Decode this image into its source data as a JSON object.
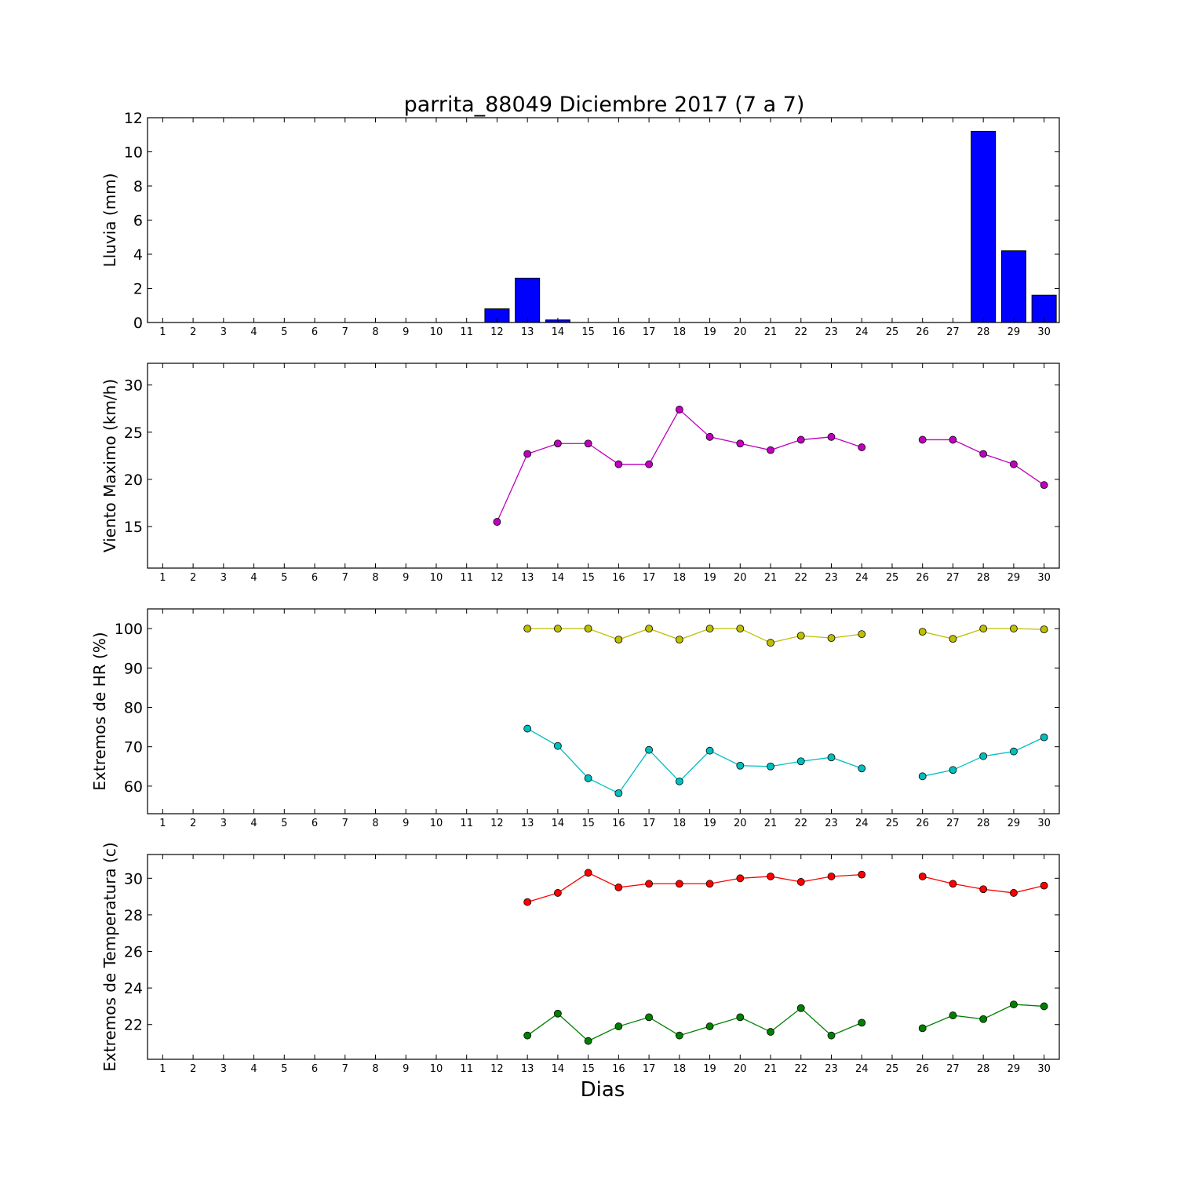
{
  "title": "parrita_88049 Diciembre 2017  (7 a 7)",
  "xlabel": "Dias",
  "chart_data": [
    {
      "type": "bar",
      "ylabel": "Lluvia (mm)",
      "x": [
        1,
        2,
        3,
        4,
        5,
        6,
        7,
        8,
        9,
        10,
        11,
        12,
        13,
        14,
        15,
        16,
        17,
        18,
        19,
        20,
        21,
        22,
        23,
        24,
        25,
        26,
        27,
        28,
        29,
        30
      ],
      "values": [
        0,
        0,
        0,
        0,
        0,
        0,
        0,
        0,
        0,
        0,
        0,
        0.8,
        2.6,
        0.15,
        0,
        0,
        0,
        0,
        0,
        0,
        0,
        0,
        0,
        0,
        0,
        0,
        0,
        11.2,
        4.2,
        1.6
      ],
      "xlim": [
        0.5,
        30.5
      ],
      "ylim": [
        0,
        12
      ],
      "yticks": [
        0,
        2,
        4,
        6,
        8,
        10,
        12
      ],
      "colors": {
        "bar": "#0000ff"
      }
    },
    {
      "type": "line",
      "ylabel": "Viento Maximo (km/h)",
      "x": [
        1,
        2,
        3,
        4,
        5,
        6,
        7,
        8,
        9,
        10,
        11,
        12,
        13,
        14,
        15,
        16,
        17,
        18,
        19,
        20,
        21,
        22,
        23,
        24,
        25,
        26,
        27,
        28,
        29,
        30
      ],
      "series": [
        {
          "values": [
            null,
            null,
            null,
            null,
            null,
            null,
            null,
            null,
            null,
            null,
            null,
            15.5,
            22.7,
            23.8,
            23.8,
            21.6,
            21.6,
            27.4,
            24.5,
            23.8,
            23.1,
            24.2,
            24.5,
            23.4,
            null,
            24.2,
            24.2,
            22.7,
            21.6,
            19.4
          ],
          "color": "#bf00bf"
        }
      ],
      "xlim": [
        0.5,
        30.5
      ],
      "ylim": [
        10.6,
        32.3
      ],
      "yticks": [
        15,
        20,
        25,
        30
      ]
    },
    {
      "type": "line",
      "ylabel": "Extremos de HR (%)",
      "x": [
        1,
        2,
        3,
        4,
        5,
        6,
        7,
        8,
        9,
        10,
        11,
        12,
        13,
        14,
        15,
        16,
        17,
        18,
        19,
        20,
        21,
        22,
        23,
        24,
        25,
        26,
        27,
        28,
        29,
        30
      ],
      "series": [
        {
          "values": [
            null,
            null,
            null,
            null,
            null,
            null,
            null,
            null,
            null,
            null,
            null,
            null,
            100,
            100,
            100,
            97.2,
            100,
            97.2,
            100,
            100,
            96.4,
            98.2,
            97.6,
            98.6,
            null,
            99.2,
            97.4,
            100,
            100,
            99.8
          ],
          "color": "#bfbf00"
        },
        {
          "values": [
            null,
            null,
            null,
            null,
            null,
            null,
            null,
            null,
            null,
            null,
            null,
            null,
            74.6,
            70.2,
            62,
            58.2,
            69.2,
            61.2,
            69,
            65.2,
            65,
            66.3,
            67.3,
            64.5,
            null,
            62.5,
            64.1,
            67.6,
            68.8,
            72.4
          ],
          "color": "#00bfbf"
        }
      ],
      "xlim": [
        0.5,
        30.5
      ],
      "ylim": [
        53,
        105
      ],
      "yticks": [
        60,
        70,
        80,
        90,
        100
      ]
    },
    {
      "type": "line",
      "ylabel": "Extremos de Temperatura (c)",
      "x": [
        1,
        2,
        3,
        4,
        5,
        6,
        7,
        8,
        9,
        10,
        11,
        12,
        13,
        14,
        15,
        16,
        17,
        18,
        19,
        20,
        21,
        22,
        23,
        24,
        25,
        26,
        27,
        28,
        29,
        30
      ],
      "series": [
        {
          "values": [
            null,
            null,
            null,
            null,
            null,
            null,
            null,
            null,
            null,
            null,
            null,
            null,
            28.7,
            29.2,
            30.3,
            29.5,
            29.7,
            29.7,
            29.7,
            30,
            30.1,
            29.8,
            30.1,
            30.2,
            null,
            30.1,
            29.7,
            29.4,
            29.2,
            29.6
          ],
          "color": "#ff0000"
        },
        {
          "values": [
            null,
            null,
            null,
            null,
            null,
            null,
            null,
            null,
            null,
            null,
            null,
            null,
            21.4,
            22.6,
            21.1,
            21.9,
            22.4,
            21.4,
            21.9,
            22.4,
            21.6,
            22.9,
            21.4,
            22.1,
            null,
            21.8,
            22.5,
            22.3,
            23.1,
            23
          ],
          "color": "#008000"
        }
      ],
      "xlim": [
        0.5,
        30.5
      ],
      "ylim": [
        20.1,
        31.3
      ],
      "yticks": [
        22,
        24,
        26,
        28,
        30
      ]
    }
  ]
}
